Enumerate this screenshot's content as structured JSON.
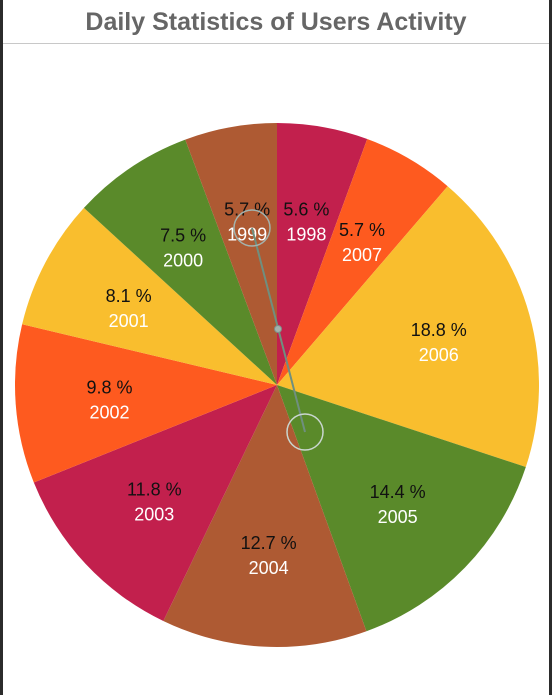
{
  "chart_data": {
    "type": "pie",
    "title": "Daily Statistics of Users Activity",
    "start_angle_deg": -90,
    "direction": "clockwise",
    "slices": [
      {
        "label": "1998",
        "value": 5.6,
        "value_label": "5.6 %",
        "color": "#C2204D"
      },
      {
        "label": "2007",
        "value": 5.7,
        "value_label": "5.7 %",
        "color": "#FE5A1F"
      },
      {
        "label": "2006",
        "value": 18.8,
        "value_label": "18.8 %",
        "color": "#F9BE2E"
      },
      {
        "label": "2005",
        "value": 14.4,
        "value_label": "14.4 %",
        "color": "#5A8A2A"
      },
      {
        "label": "2004",
        "value": 12.7,
        "value_label": "12.7 %",
        "color": "#AE5A33"
      },
      {
        "label": "2003",
        "value": 11.8,
        "value_label": "11.8 %",
        "color": "#C2204D"
      },
      {
        "label": "2002",
        "value": 9.8,
        "value_label": "9.8 %",
        "color": "#FE5A1F"
      },
      {
        "label": "2001",
        "value": 8.1,
        "value_label": "8.1 %",
        "color": "#F9BE2E"
      },
      {
        "label": "2000",
        "value": 7.5,
        "value_label": "7.5 %",
        "color": "#5A8A2A"
      },
      {
        "label": "1999",
        "value": 5.7,
        "value_label": "5.7 %",
        "color": "#AE5A33"
      }
    ]
  }
}
